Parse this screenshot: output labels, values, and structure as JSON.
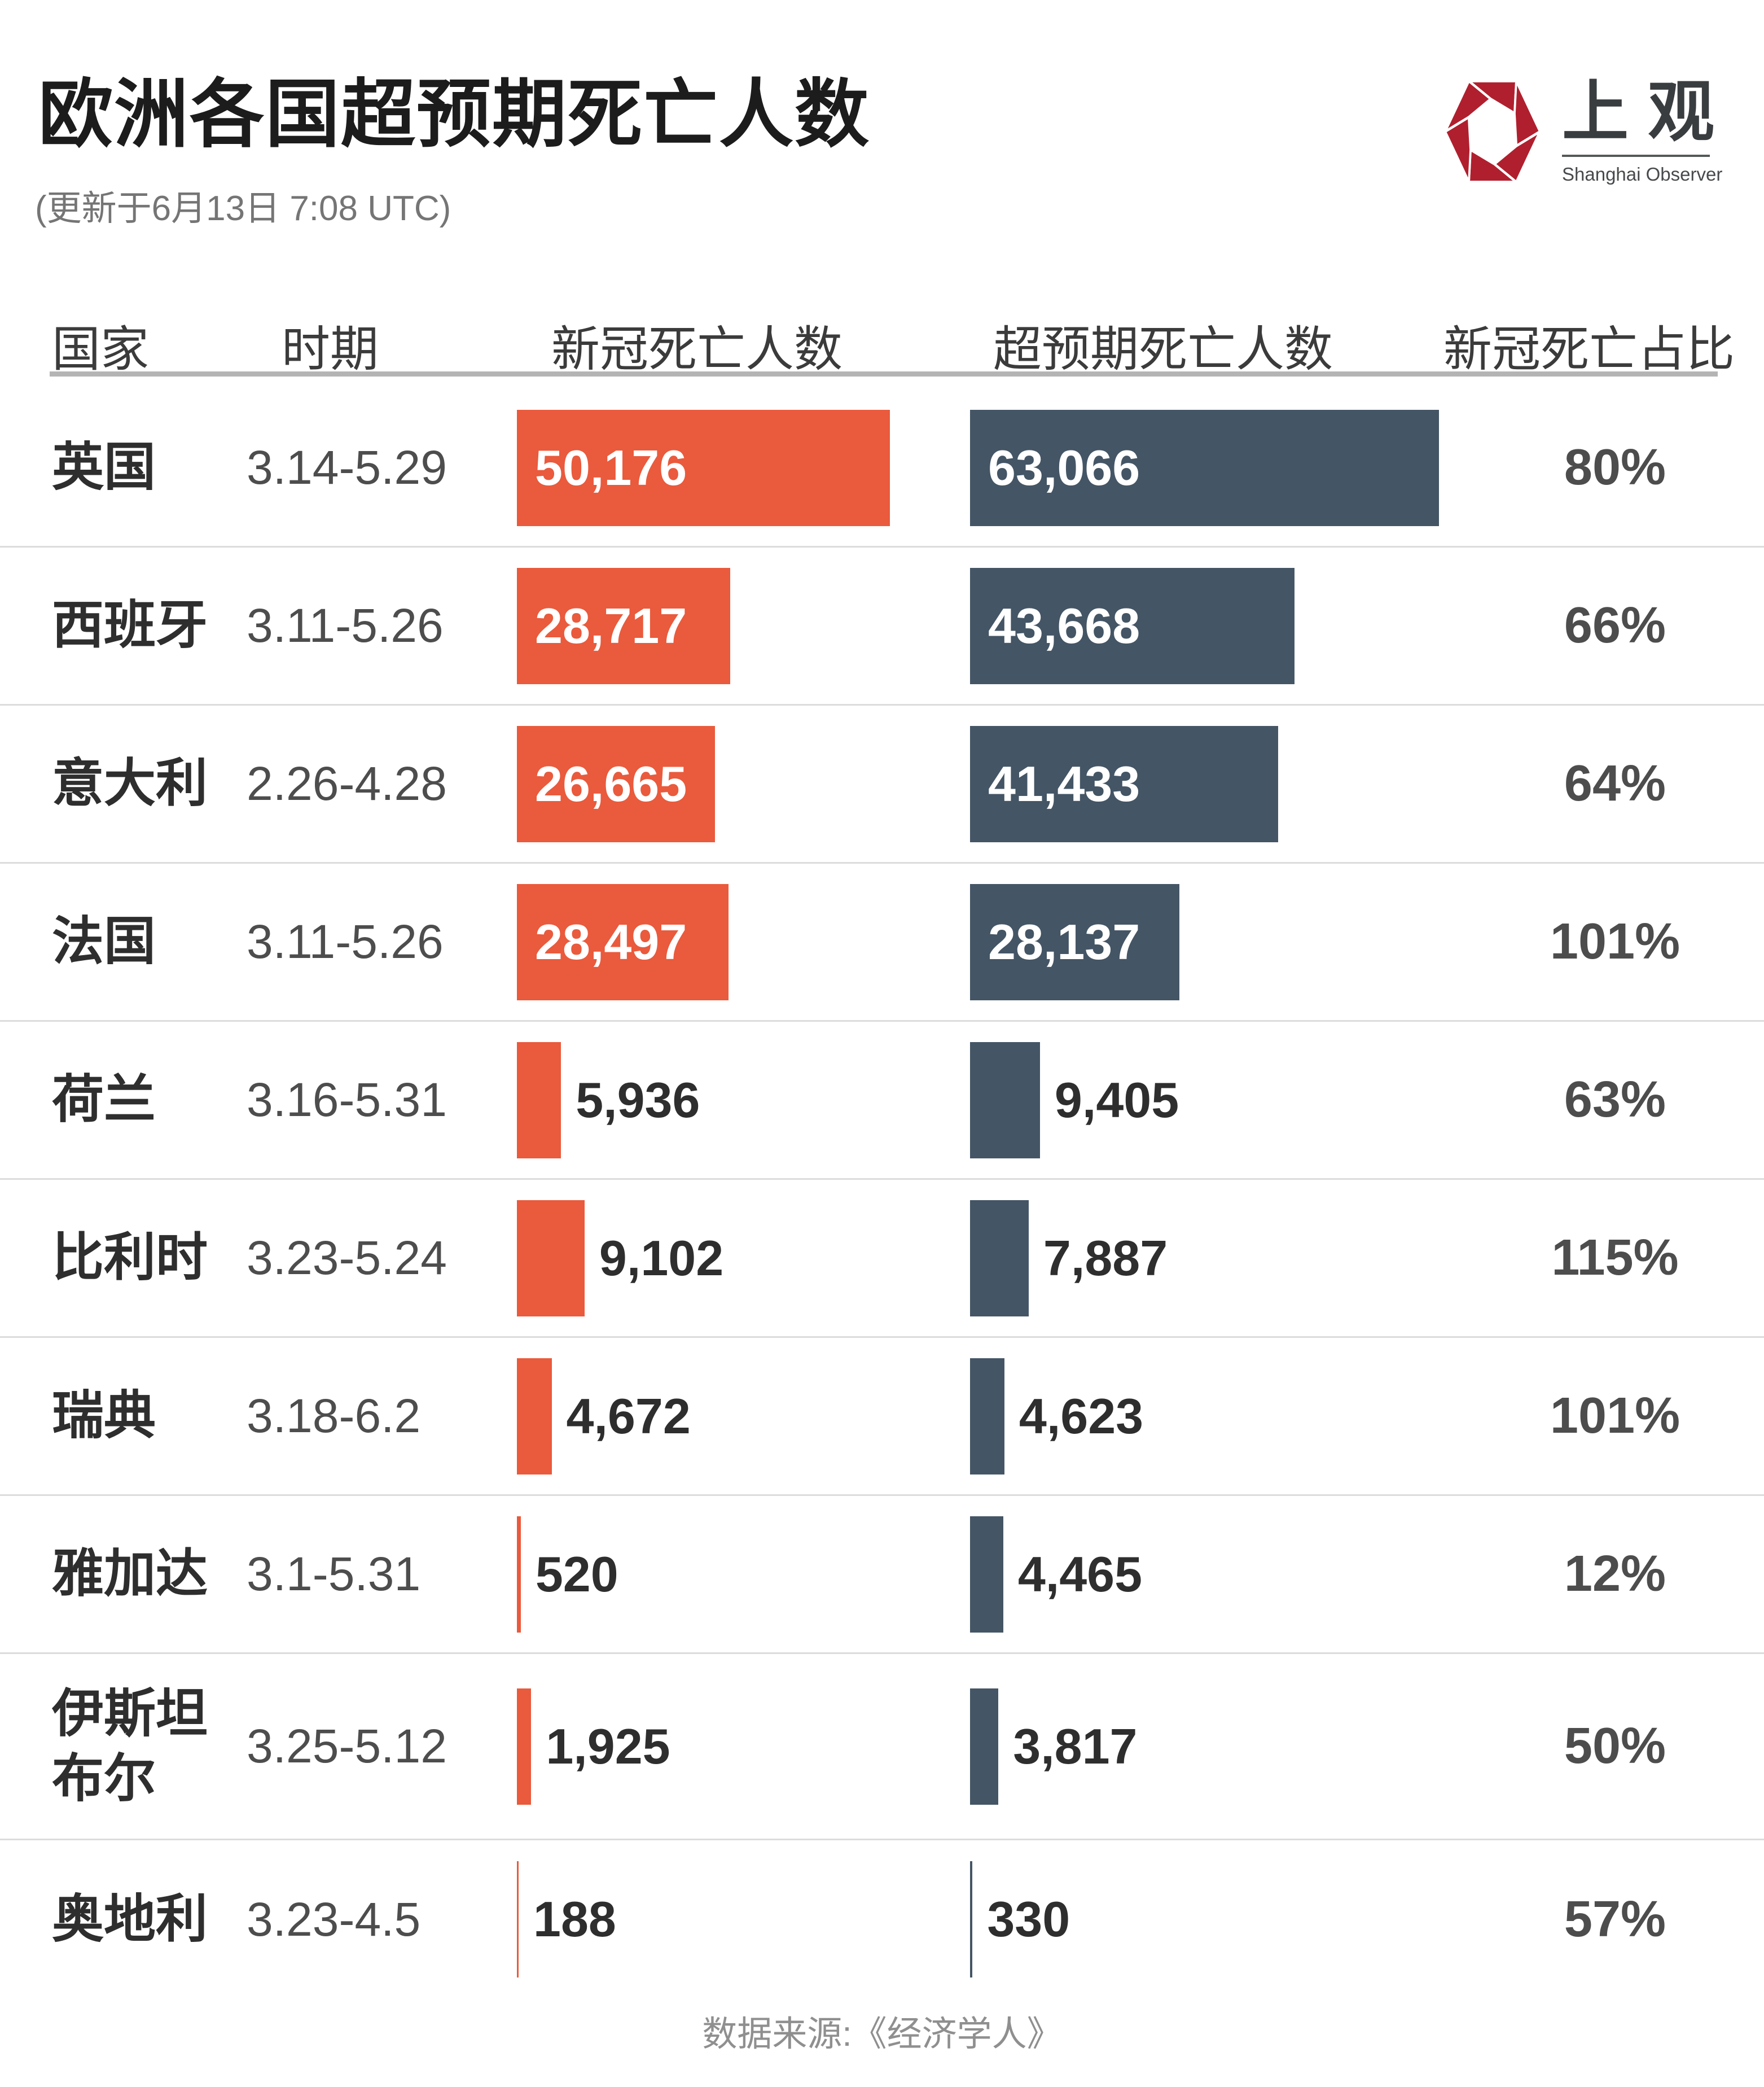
{
  "header": {
    "title": "欧洲各国超预期死亡人数",
    "subtitle": "(更新于6月13日 7:08 UTC)",
    "logo": {
      "name_cn": "上观",
      "name_en": "Shanghai Observer",
      "color": "#b01f2e"
    }
  },
  "table": {
    "columns": [
      "国家",
      "时期",
      "新冠死亡人数",
      "超预期死亡人数",
      "新冠死亡占比"
    ]
  },
  "chart_data": {
    "type": "bar",
    "orientation": "horizontal-paired",
    "title": "欧洲各国超预期死亡人数",
    "subtitle": "(更新于6月13日 7:08 UTC)",
    "series_names": [
      "新冠死亡人数",
      "超预期死亡人数"
    ],
    "colors": {
      "covid_bar": "#ea5a3c",
      "excess_bar": "#445565"
    },
    "axis_max": 63066,
    "legend_position": "column-headers",
    "grid": false,
    "rows": [
      {
        "country": "英国",
        "period": "3.14-5.29",
        "covid": 50176,
        "covid_label": "50,176",
        "excess": 63066,
        "excess_label": "63,066",
        "ratio": "80%"
      },
      {
        "country": "西班牙",
        "period": "3.11-5.26",
        "covid": 28717,
        "covid_label": "28,717",
        "excess": 43668,
        "excess_label": "43,668",
        "ratio": "66%"
      },
      {
        "country": "意大利",
        "period": "2.26-4.28",
        "covid": 26665,
        "covid_label": "26,665",
        "excess": 41433,
        "excess_label": "41,433",
        "ratio": "64%"
      },
      {
        "country": "法国",
        "period": "3.11-5.26",
        "covid": 28497,
        "covid_label": "28,497",
        "excess": 28137,
        "excess_label": "28,137",
        "ratio": "101%"
      },
      {
        "country": "荷兰",
        "period": "3.16-5.31",
        "covid": 5936,
        "covid_label": "5,936",
        "excess": 9405,
        "excess_label": "9,405",
        "ratio": "63%"
      },
      {
        "country": "比利时",
        "period": "3.23-5.24",
        "covid": 9102,
        "covid_label": "9,102",
        "excess": 7887,
        "excess_label": "7,887",
        "ratio": "115%"
      },
      {
        "country": "瑞典",
        "period": "3.18-6.2",
        "covid": 4672,
        "covid_label": "4,672",
        "excess": 4623,
        "excess_label": "4,623",
        "ratio": "101%"
      },
      {
        "country": "雅加达",
        "period": "3.1-5.31",
        "covid": 520,
        "covid_label": "520",
        "excess": 4465,
        "excess_label": "4,465",
        "ratio": "12%"
      },
      {
        "country": "伊斯坦布尔",
        "period": "3.25-5.12",
        "covid": 1925,
        "covid_label": "1,925",
        "excess": 3817,
        "excess_label": "3,817",
        "ratio": "50%"
      },
      {
        "country": "奥地利",
        "period": "3.23-4.5",
        "covid": 188,
        "covid_label": "188",
        "excess": 330,
        "excess_label": "330",
        "ratio": "57%"
      }
    ]
  },
  "footer": {
    "source": "数据来源:《经济学人》"
  }
}
